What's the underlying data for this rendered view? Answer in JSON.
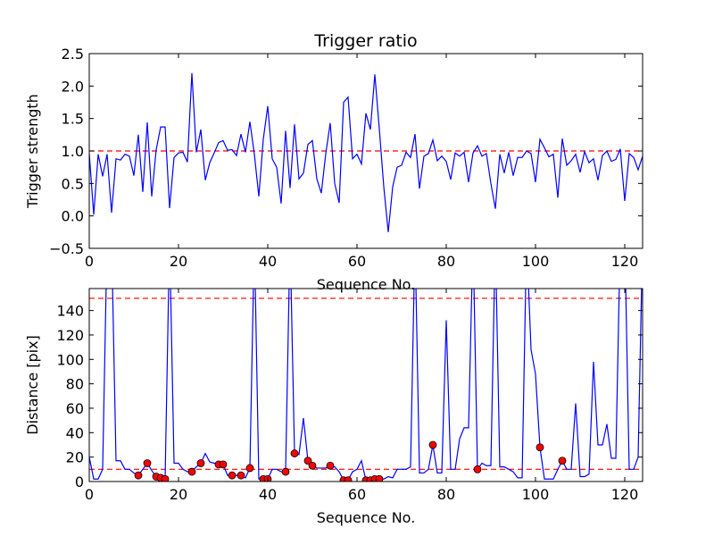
{
  "chart_data": [
    {
      "type": "line",
      "title": "Trigger ratio",
      "xlabel": "Sequence No.",
      "ylabel": "Trigger strength",
      "xlim": [
        0,
        124
      ],
      "ylim": [
        -0.5,
        2.5
      ],
      "xticks": [
        0,
        20,
        40,
        60,
        80,
        100,
        120
      ],
      "yticks": [
        -0.5,
        0.0,
        0.5,
        1.0,
        1.5,
        2.0,
        2.5
      ],
      "xtick_labels": [
        "0",
        "20",
        "40",
        "60",
        "80",
        "100",
        "120"
      ],
      "ytick_labels": [
        "−0.5",
        "0.0",
        "0.5",
        "1.0",
        "1.5",
        "2.0",
        "2.5"
      ],
      "reference_lines": [
        1.0
      ],
      "colors": {
        "series": "#0000ff",
        "reference": "#ff0000"
      },
      "series": [
        {
          "name": "trigger strength",
          "values": [
            0.96,
            0.02,
            0.95,
            0.61,
            0.95,
            0.05,
            0.88,
            0.86,
            0.95,
            0.92,
            0.62,
            1.25,
            0.37,
            1.44,
            0.3,
            1.02,
            1.37,
            1.37,
            0.12,
            0.9,
            0.97,
            0.98,
            0.83,
            2.2,
            0.98,
            1.33,
            0.55,
            0.82,
            0.97,
            1.13,
            1.16,
            1.01,
            1.02,
            0.93,
            1.26,
            0.98,
            1.45,
            0.95,
            0.3,
            1.18,
            1.69,
            0.88,
            0.75,
            0.19,
            1.31,
            0.43,
            1.41,
            0.57,
            0.66,
            1.1,
            1.16,
            0.57,
            0.35,
            0.96,
            1.43,
            0.5,
            0.2,
            1.75,
            1.83,
            0.88,
            0.95,
            0.8,
            1.58,
            1.33,
            2.18,
            1.34,
            0.45,
            -0.25,
            0.45,
            0.75,
            0.78,
            0.98,
            0.9,
            1.26,
            0.42,
            0.92,
            0.96,
            1.17,
            0.85,
            0.92,
            0.84,
            0.56,
            0.97,
            0.92,
            0.98,
            0.52,
            0.97,
            1.08,
            0.92,
            0.96,
            0.5,
            0.11,
            0.95,
            0.66,
            0.98,
            0.62,
            0.9,
            0.9,
            1.0,
            0.96,
            0.52,
            1.18,
            1.05,
            0.91,
            0.95,
            0.28,
            1.19,
            0.78,
            0.85,
            0.95,
            0.67,
            0.99,
            0.82,
            0.88,
            0.55,
            0.93,
            1.0,
            0.84,
            0.87,
            1.03,
            0.23,
            0.96,
            0.9,
            0.71,
            0.92
          ]
        }
      ]
    },
    {
      "type": "line",
      "title": "",
      "xlabel": "Sequence No.",
      "ylabel": "Distance [pix]",
      "xlim": [
        0,
        124
      ],
      "ylim": [
        0,
        158
      ],
      "xticks": [
        0,
        20,
        40,
        60,
        80,
        100,
        120
      ],
      "yticks": [
        0,
        20,
        40,
        60,
        80,
        100,
        120,
        140
      ],
      "xtick_labels": [
        "0",
        "20",
        "40",
        "60",
        "80",
        "100",
        "120"
      ],
      "ytick_labels": [
        "0",
        "20",
        "40",
        "60",
        "80",
        "100",
        "120",
        "140"
      ],
      "reference_lines": [
        10,
        150
      ],
      "colors": {
        "series": "#0000ff",
        "reference": "#ff0000",
        "markers": "#ff0000"
      },
      "series": [
        {
          "name": "distance",
          "values": [
            20,
            2,
            2,
            10,
            200,
            200,
            17,
            17,
            10,
            10,
            7,
            5,
            10,
            15,
            9,
            4,
            3,
            2,
            200,
            15,
            15,
            10,
            8,
            8,
            12,
            15,
            23,
            16,
            15,
            14,
            14,
            5,
            5,
            5,
            5,
            3,
            11,
            200,
            2,
            2,
            2,
            10,
            10,
            8,
            8,
            200,
            23,
            22,
            52,
            17,
            13,
            11,
            11,
            11,
            13,
            12,
            8,
            1,
            1,
            8,
            10,
            17,
            1,
            1,
            2,
            2,
            2,
            4,
            3,
            10,
            10,
            10,
            12,
            200,
            7,
            7,
            10,
            30,
            7,
            7,
            132,
            10,
            10,
            35,
            44,
            44,
            200,
            10,
            15,
            13,
            13,
            200,
            12,
            12,
            10,
            8,
            3,
            3,
            200,
            108,
            88,
            28,
            2,
            2,
            2,
            10,
            17,
            10,
            10,
            64,
            4,
            4,
            6,
            98,
            30,
            30,
            47,
            19,
            19,
            200,
            200,
            10,
            10,
            20,
            200
          ],
          "markers_at": [
            11,
            13,
            15,
            16,
            17,
            23,
            25,
            29,
            30,
            32,
            34,
            36,
            37,
            39,
            40,
            44,
            46,
            49,
            50,
            54,
            57,
            58,
            62,
            63,
            64,
            65,
            73,
            77,
            87,
            101,
            106
          ]
        }
      ]
    }
  ]
}
